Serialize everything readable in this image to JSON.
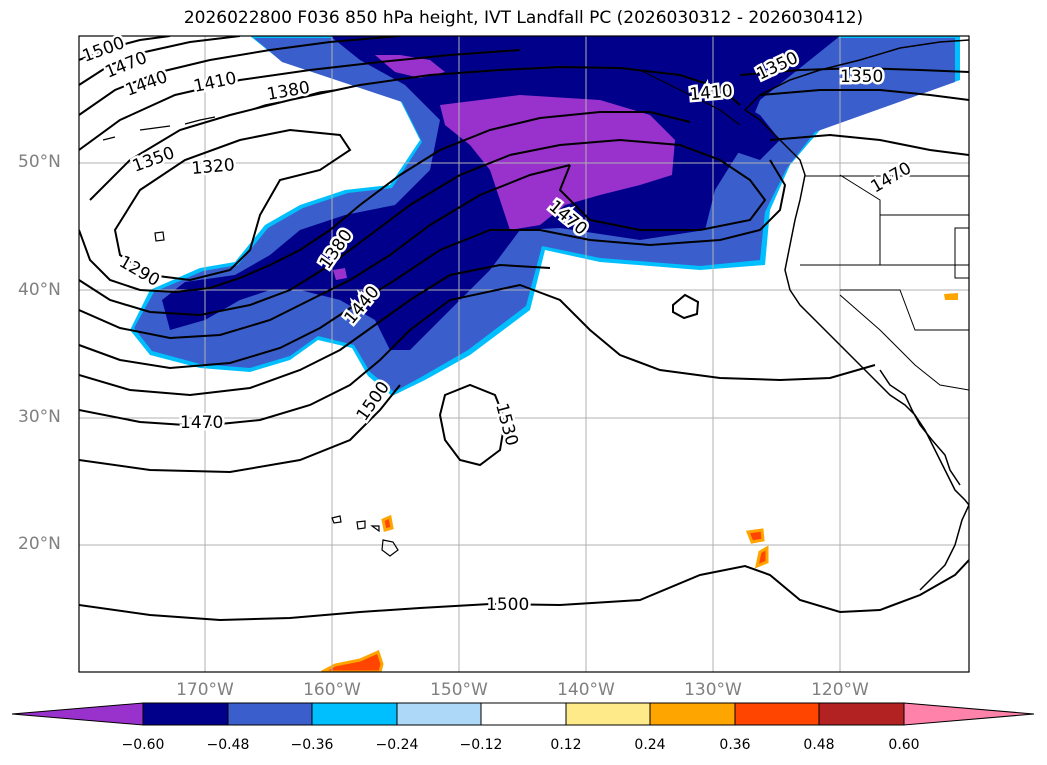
{
  "title": "2026022800 F036 850 hPa height, IVT Landfall PC (2026030312 - 2026030412)",
  "lat_labels": [
    "50°N",
    "40°N",
    "30°N",
    "20°N"
  ],
  "lon_labels": [
    "170°W",
    "160°W",
    "150°W",
    "140°W",
    "130°W",
    "120°W"
  ],
  "contour_labels": [
    "1500",
    "1470",
    "1440",
    "1410",
    "1380",
    "1350",
    "1320",
    "1290",
    "1380",
    "1440",
    "1500",
    "1470",
    "1470",
    "1530",
    "1350",
    "1350",
    "1470",
    "1410",
    "1500"
  ],
  "colorbar": {
    "ticks": [
      "−0.60",
      "−0.48",
      "−0.36",
      "−0.24",
      "−0.12",
      "0.12",
      "0.24",
      "0.36",
      "0.48",
      "0.60"
    ],
    "colors": [
      "#9932cc",
      "#00008b",
      "#3a5fcd",
      "#00bfff",
      "#add8f7",
      "#ffffff",
      "#ffea8a",
      "#ffa500",
      "#ff4500",
      "#b22222",
      "#ff82ab"
    ]
  }
}
